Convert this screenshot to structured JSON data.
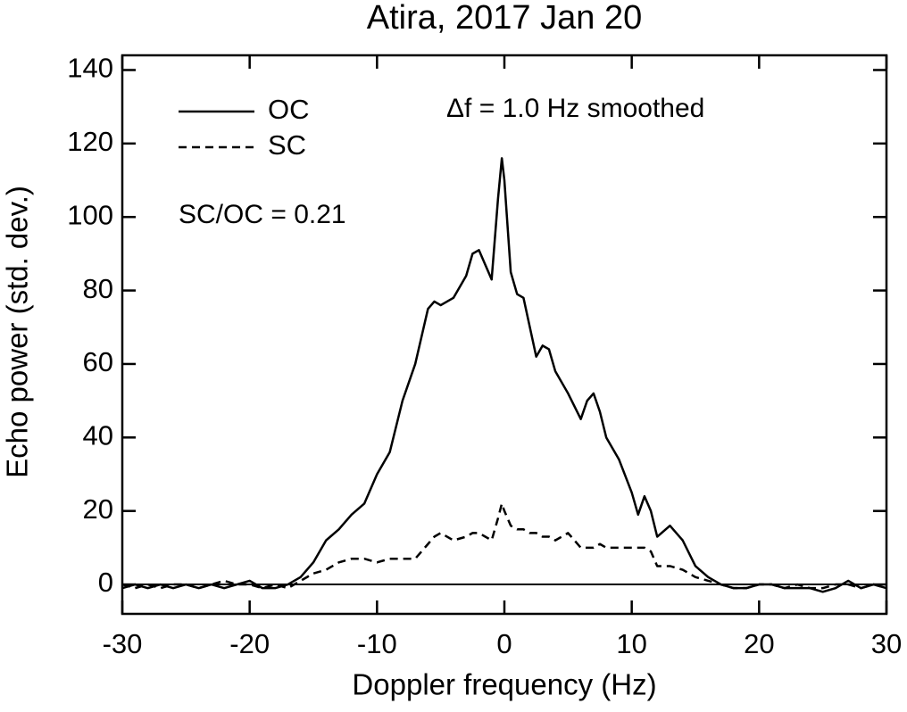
{
  "chart_data": {
    "type": "line",
    "title": "Atira, 2017 Jan 20",
    "x_label": "Doppler frequency (Hz)",
    "y_label": "Echo power (std. dev.)",
    "annotations": [
      "Δf = 1.0 Hz smoothed",
      "SC/OC = 0.21"
    ],
    "x": [
      -30,
      -29,
      -28,
      -27,
      -26,
      -25,
      -24,
      -23,
      -22,
      -21,
      -20,
      -19,
      -18,
      -17,
      -16,
      -15,
      -14,
      -13,
      -12,
      -11,
      -10,
      -9,
      -8,
      -7,
      -6,
      -5.5,
      -5,
      -4,
      -3,
      -2.5,
      -2,
      -1.5,
      -1,
      -0.5,
      -0.2,
      0,
      0.5,
      1,
      1.5,
      2,
      2.5,
      3,
      3.5,
      4,
      5,
      6,
      6.5,
      7,
      7.5,
      8,
      9,
      10,
      10.5,
      11,
      11.5,
      12,
      13,
      14,
      15,
      16,
      17,
      18,
      19,
      20,
      21,
      22,
      23,
      24,
      25,
      26,
      27,
      28,
      29,
      30
    ],
    "series": [
      {
        "name": "OC",
        "color": "#000000",
        "dash": "solid",
        "values": [
          -1,
          0,
          -1,
          0,
          -1,
          0,
          -1,
          0,
          -1,
          0,
          1,
          -1,
          -1,
          0,
          2,
          6,
          12,
          15,
          19,
          22,
          30,
          36,
          50,
          60,
          75,
          77,
          76,
          78,
          84,
          90,
          91,
          87,
          83,
          105,
          116,
          110,
          85,
          79,
          78,
          70,
          62,
          65,
          64,
          58,
          52,
          45,
          50,
          52,
          47,
          40,
          34,
          25,
          19,
          24,
          20,
          13,
          16,
          12,
          5,
          2,
          0,
          -1,
          -1,
          0,
          0,
          -1,
          -1,
          -1,
          -2,
          -1,
          1,
          -1,
          0,
          -1
        ]
      },
      {
        "name": "SC",
        "color": "#000000",
        "dash": "dashed",
        "values": [
          0,
          -1,
          0,
          -1,
          0,
          0,
          -1,
          0,
          1,
          0,
          0,
          -1,
          0,
          -1,
          1,
          3,
          4,
          6,
          7,
          7,
          6,
          7,
          7,
          7,
          11,
          13,
          14,
          12,
          13,
          14,
          14,
          13,
          12,
          18,
          22,
          20,
          16,
          15,
          15,
          14,
          14,
          13,
          13,
          12,
          14,
          10,
          10,
          10,
          11,
          10,
          10,
          10,
          10,
          10,
          9,
          5,
          5,
          4,
          2,
          1,
          0,
          -1,
          -1,
          0,
          0,
          -1,
          0,
          -1,
          -1,
          0,
          0,
          -1,
          0,
          -1
        ]
      }
    ],
    "xlim": [
      -30,
      30
    ],
    "xticks": [
      -30,
      -20,
      -10,
      0,
      10,
      20,
      30
    ],
    "ylim": [
      -8,
      144
    ],
    "yticks": [
      0,
      20,
      40,
      60,
      80,
      100,
      120,
      140
    ],
    "zero_line": true,
    "grid": false,
    "legend_position": "upper left"
  }
}
